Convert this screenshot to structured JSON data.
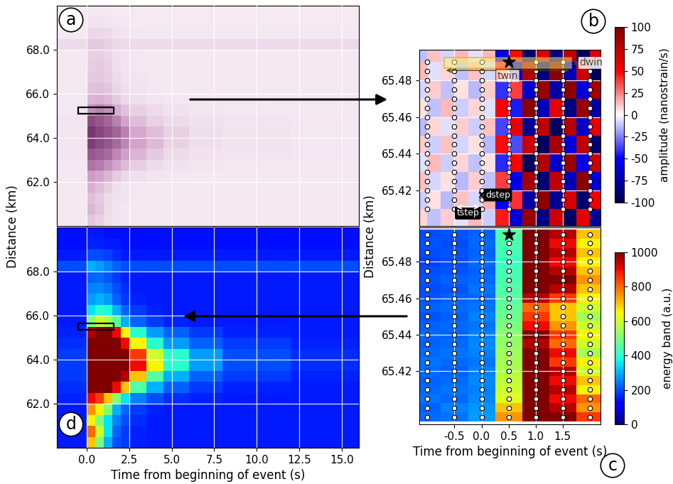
{
  "chart_data": [
    {
      "panel": "a",
      "type": "heatmap",
      "x_edges": [
        -1.75,
        0.0,
        0.5,
        1.0,
        1.5,
        2.0,
        2.5,
        3.5,
        4.5,
        6.0,
        8.0,
        12.0,
        16.0
      ],
      "y_edges": [
        60.0,
        60.5,
        61.0,
        61.5,
        62.0,
        62.5,
        63.0,
        63.5,
        64.0,
        64.5,
        65.0,
        65.5,
        66.0,
        66.5,
        67.0,
        67.5,
        68.0,
        68.5,
        69.0,
        69.5,
        70.0
      ],
      "cells": [
        [
          4,
          25,
          18,
          10,
          6,
          5,
          4,
          4,
          4,
          4,
          4,
          4
        ],
        [
          4,
          35,
          25,
          12,
          7,
          5,
          4,
          4,
          4,
          4,
          4,
          4
        ],
        [
          4,
          30,
          22,
          12,
          8,
          6,
          5,
          4,
          4,
          4,
          4,
          4
        ],
        [
          4,
          38,
          30,
          20,
          10,
          7,
          5,
          4,
          4,
          4,
          4,
          4
        ],
        [
          5,
          50,
          45,
          35,
          22,
          14,
          9,
          6,
          5,
          4,
          4,
          4
        ],
        [
          5,
          65,
          62,
          55,
          45,
          32,
          20,
          12,
          8,
          6,
          5,
          4
        ],
        [
          6,
          75,
          72,
          68,
          58,
          48,
          35,
          22,
          12,
          8,
          6,
          5
        ],
        [
          6,
          85,
          80,
          75,
          68,
          58,
          45,
          32,
          18,
          10,
          7,
          5
        ],
        [
          6,
          88,
          82,
          76,
          70,
          60,
          42,
          30,
          18,
          10,
          7,
          5
        ],
        [
          6,
          80,
          75,
          70,
          60,
          45,
          30,
          18,
          12,
          8,
          6,
          5
        ],
        [
          5,
          55,
          60,
          55,
          40,
          28,
          18,
          12,
          8,
          6,
          5,
          4
        ],
        [
          5,
          35,
          38,
          32,
          22,
          14,
          9,
          6,
          5,
          4,
          4,
          4
        ],
        [
          4,
          28,
          30,
          25,
          16,
          10,
          7,
          5,
          4,
          4,
          4,
          4
        ],
        [
          4,
          22,
          24,
          20,
          12,
          8,
          6,
          5,
          4,
          4,
          4,
          4
        ],
        [
          4,
          20,
          22,
          18,
          10,
          7,
          5,
          4,
          4,
          4,
          4,
          4
        ],
        [
          4,
          18,
          20,
          15,
          9,
          6,
          5,
          4,
          4,
          4,
          4,
          4
        ],
        [
          12,
          22,
          22,
          18,
          14,
          12,
          12,
          12,
          12,
          12,
          12,
          12
        ],
        [
          4,
          14,
          14,
          12,
          8,
          6,
          5,
          4,
          4,
          4,
          4,
          4
        ],
        [
          3,
          8,
          8,
          6,
          5,
          4,
          3,
          3,
          3,
          3,
          3,
          3
        ],
        [
          3,
          5,
          5,
          4,
          3,
          3,
          3,
          3,
          3,
          3,
          3,
          3
        ]
      ],
      "color_range": [
        0,
        100
      ],
      "xlim": [
        -1.75,
        16.0
      ],
      "ylim": [
        60.0,
        70.0
      ],
      "xticks": [
        0.0,
        2.5,
        5.0,
        7.5,
        10.0,
        12.5,
        15.0
      ],
      "yticks": [
        62.0,
        64.0,
        66.0,
        68.0
      ],
      "grid": true,
      "tick_labels": "y",
      "box": {
        "time": [
          -0.5,
          1.6
        ],
        "distance": [
          65.1,
          65.4
        ]
      },
      "ylabel": "Distance (km)"
    },
    {
      "panel": "d",
      "type": "heatmap",
      "x_edges": [
        -1.75,
        0.0,
        0.5,
        1.0,
        1.5,
        2.0,
        2.5,
        3.5,
        4.5,
        6.0,
        8.0,
        12.0,
        16.0
      ],
      "y_edges": [
        60.0,
        60.5,
        61.0,
        61.5,
        62.0,
        62.5,
        63.0,
        63.5,
        64.0,
        64.5,
        65.0,
        65.5,
        66.0,
        66.5,
        67.0,
        67.5,
        68.0,
        68.5,
        69.0,
        69.5,
        70.0
      ],
      "cells": [
        [
          150,
          700,
          500,
          300,
          200,
          180,
          160,
          150,
          150,
          150,
          150,
          150
        ],
        [
          150,
          800,
          600,
          350,
          220,
          180,
          160,
          150,
          150,
          150,
          150,
          150
        ],
        [
          150,
          650,
          500,
          350,
          250,
          200,
          170,
          150,
          150,
          150,
          150,
          150
        ],
        [
          150,
          750,
          650,
          500,
          300,
          220,
          180,
          160,
          150,
          150,
          150,
          150
        ],
        [
          160,
          900,
          850,
          700,
          500,
          350,
          250,
          200,
          170,
          160,
          150,
          150
        ],
        [
          170,
          1000,
          1000,
          1000,
          900,
          700,
          450,
          300,
          220,
          180,
          160,
          150
        ],
        [
          180,
          1000,
          1000,
          1000,
          1000,
          950,
          700,
          450,
          300,
          220,
          180,
          160
        ],
        [
          180,
          1000,
          1000,
          1000,
          1000,
          1000,
          900,
          650,
          400,
          280,
          200,
          170
        ],
        [
          180,
          1000,
          1000,
          1000,
          1000,
          1000,
          850,
          600,
          400,
          280,
          200,
          170
        ],
        [
          170,
          1000,
          1000,
          1000,
          1000,
          900,
          650,
          400,
          280,
          220,
          180,
          160
        ],
        [
          160,
          950,
          1000,
          1000,
          900,
          650,
          400,
          280,
          220,
          180,
          160,
          150
        ],
        [
          150,
          500,
          600,
          550,
          450,
          300,
          220,
          180,
          160,
          150,
          150,
          150
        ],
        [
          150,
          350,
          400,
          380,
          300,
          220,
          180,
          160,
          150,
          150,
          150,
          150
        ],
        [
          150,
          280,
          300,
          280,
          220,
          180,
          160,
          150,
          150,
          150,
          150,
          150
        ],
        [
          150,
          250,
          260,
          240,
          200,
          170,
          150,
          150,
          150,
          150,
          150,
          150
        ],
        [
          150,
          220,
          230,
          210,
          180,
          160,
          150,
          150,
          150,
          150,
          150,
          150
        ],
        [
          200,
          300,
          280,
          250,
          220,
          200,
          200,
          200,
          200,
          200,
          200,
          200
        ],
        [
          150,
          200,
          200,
          190,
          170,
          150,
          150,
          150,
          150,
          150,
          150,
          150
        ],
        [
          140,
          160,
          160,
          150,
          150,
          140,
          140,
          140,
          140,
          140,
          140,
          140
        ],
        [
          140,
          150,
          150,
          140,
          140,
          140,
          140,
          140,
          140,
          140,
          140,
          140
        ]
      ],
      "color_range": [
        0,
        1000
      ],
      "xlim": [
        -1.75,
        16.0
      ],
      "ylim": [
        60.0,
        70.0
      ],
      "xticks": [
        0.0,
        2.5,
        5.0,
        7.5,
        10.0,
        12.5,
        15.0
      ],
      "yticks": [
        62.0,
        64.0,
        66.0,
        68.0
      ],
      "grid": true,
      "box": {
        "time": [
          -0.5,
          1.6
        ],
        "distance": [
          65.35,
          65.65
        ]
      },
      "xlabel": "Time from beginning of event (s)"
    },
    {
      "panel": "b",
      "type": "heatmap",
      "x_edges": [
        -1.25,
        -1.0,
        -0.75,
        -0.5,
        -0.25,
        0.0,
        0.25,
        0.5,
        0.75,
        1.0,
        1.25,
        1.5,
        1.75,
        2.0,
        2.25
      ],
      "y_edges": [
        65.4,
        65.41,
        65.42,
        65.43,
        65.44,
        65.45,
        65.46,
        65.47,
        65.48,
        65.49,
        65.5
      ],
      "cells": [
        [
          8,
          -12,
          10,
          -6,
          14,
          -10,
          45,
          -60,
          90,
          -85,
          70,
          -95,
          60,
          -80
        ],
        [
          -10,
          6,
          -14,
          12,
          -8,
          16,
          -50,
          40,
          -75,
          95,
          -80,
          65,
          -90,
          55
        ],
        [
          12,
          -8,
          6,
          -14,
          10,
          -12,
          38,
          -55,
          85,
          -90,
          75,
          -70,
          95,
          -60
        ],
        [
          -6,
          14,
          -10,
          8,
          -12,
          6,
          -42,
          50,
          -95,
          80,
          -65,
          90,
          -55,
          70
        ],
        [
          10,
          -10,
          12,
          -8,
          6,
          -14,
          48,
          -35,
          70,
          -95,
          85,
          -60,
          75,
          -90
        ],
        [
          -14,
          8,
          -6,
          10,
          -10,
          12,
          -36,
          58,
          -80,
          75,
          -95,
          80,
          -65,
          60
        ],
        [
          6,
          -12,
          14,
          -10,
          8,
          -6,
          52,
          -45,
          95,
          -70,
          60,
          -85,
          90,
          -75
        ],
        [
          -8,
          10,
          -12,
          6,
          -14,
          10,
          -40,
          38,
          -65,
          90,
          -75,
          95,
          -60,
          85
        ],
        [
          14,
          -6,
          8,
          -12,
          12,
          -8,
          44,
          -62,
          80,
          -85,
          95,
          -70,
          70,
          -95
        ],
        [
          -12,
          12,
          -8,
          14,
          -6,
          14,
          -55,
          48,
          -90,
          65,
          -85,
          75,
          -95,
          65
        ]
      ],
      "color_range": [
        -100,
        100
      ],
      "colorbar": {
        "label": "amplitude (nanostrain/s)",
        "range": [
          -100,
          100
        ],
        "ticks": [
          -100,
          -75,
          -50,
          -25,
          0,
          25,
          50,
          75,
          100
        ]
      },
      "xlim": [
        -1.15,
        2.2
      ],
      "ylim": [
        65.4006,
        65.4967
      ],
      "xticks": [
        -0.5,
        0.0,
        0.5,
        1.0,
        1.5
      ],
      "yticks": [
        65.42,
        65.44,
        65.46,
        65.48
      ],
      "grid": true,
      "tick_labels": "y",
      "ylabel": "Distance (km)",
      "windows": {
        "times": [
          -1.0,
          -0.5,
          0.0,
          0.5,
          1.0,
          1.5,
          2.0
        ],
        "distances": [
          65.41,
          65.415,
          65.42,
          65.425,
          65.43,
          65.435,
          65.44,
          65.445,
          65.45,
          65.455,
          65.46,
          65.465,
          65.47,
          65.475,
          65.48,
          65.485,
          65.49
        ],
        "star": {
          "time": 0.5,
          "distance": 65.49
        },
        "twin": {
          "label": "twin",
          "time": [
            -0.69,
            1.66
          ]
        },
        "dwin": {
          "label": "dwin",
          "distance": [
            65.4866,
            65.4925
          ]
        },
        "tstep": {
          "label": "tstep",
          "time": [
            -0.5,
            0.0
          ],
          "distance": 65.411
        },
        "dstep": {
          "label": "dstep",
          "distance": [
            65.415,
            65.42
          ],
          "time": 0.0
        }
      }
    },
    {
      "panel": "c",
      "type": "heatmap",
      "x": [
        -1.0,
        -0.5,
        0.0,
        0.5,
        1.0,
        1.5,
        2.0
      ],
      "y": [
        65.395,
        65.4,
        65.405,
        65.41,
        65.415,
        65.42,
        65.425,
        65.43,
        65.435,
        65.44,
        65.445,
        65.45,
        65.455,
        65.46,
        65.465,
        65.47,
        65.475,
        65.48,
        65.485,
        65.49,
        65.495
      ],
      "cells": [
        [
          230,
          240,
          280,
          750,
          1000,
          1000,
          850
        ],
        [
          220,
          250,
          270,
          700,
          1000,
          950,
          750
        ],
        [
          240,
          230,
          260,
          620,
          1000,
          900,
          800
        ],
        [
          230,
          240,
          250,
          600,
          1000,
          950,
          650
        ],
        [
          220,
          230,
          260,
          580,
          1000,
          900,
          700
        ],
        [
          230,
          220,
          250,
          560,
          1000,
          950,
          600
        ],
        [
          240,
          230,
          240,
          550,
          1000,
          850,
          650
        ],
        [
          230,
          240,
          250,
          540,
          1000,
          900,
          550
        ],
        [
          220,
          230,
          260,
          530,
          950,
          800,
          600
        ],
        [
          230,
          220,
          250,
          520,
          1000,
          850,
          650
        ],
        [
          220,
          230,
          240,
          500,
          900,
          750,
          600
        ],
        [
          210,
          220,
          250,
          480,
          850,
          700,
          550
        ],
        [
          220,
          230,
          240,
          470,
          800,
          700,
          600
        ],
        [
          210,
          220,
          230,
          460,
          950,
          850,
          650
        ],
        [
          200,
          210,
          240,
          450,
          1000,
          950,
          700
        ],
        [
          210,
          220,
          230,
          440,
          1000,
          1000,
          750
        ],
        [
          200,
          210,
          220,
          430,
          1000,
          950,
          700
        ],
        [
          190,
          200,
          230,
          420,
          1000,
          900,
          650
        ],
        [
          200,
          210,
          220,
          430,
          1000,
          950,
          700
        ],
        [
          210,
          200,
          230,
          440,
          1000,
          900,
          650
        ],
        [
          200,
          210,
          220,
          450,
          1000,
          950,
          700
        ]
      ],
      "color_range": [
        0,
        1000
      ],
      "colorbar": {
        "label": "energy band (a.u.)",
        "range": [
          0,
          1000
        ],
        "ticks": [
          0,
          200,
          400,
          600,
          800,
          1000
        ]
      },
      "xlim": [
        -1.15,
        2.2
      ],
      "ylim": [
        65.391,
        65.4987
      ],
      "xticks": [
        -0.5,
        0.0,
        0.5,
        1.0,
        1.5
      ],
      "yticks": [
        65.42,
        65.44,
        65.46,
        65.48
      ],
      "grid": true,
      "xlabel": "Time from beginning of event (s)",
      "windows": {
        "star": {
          "time": 0.5,
          "distance": 65.495
        }
      }
    }
  ]
}
